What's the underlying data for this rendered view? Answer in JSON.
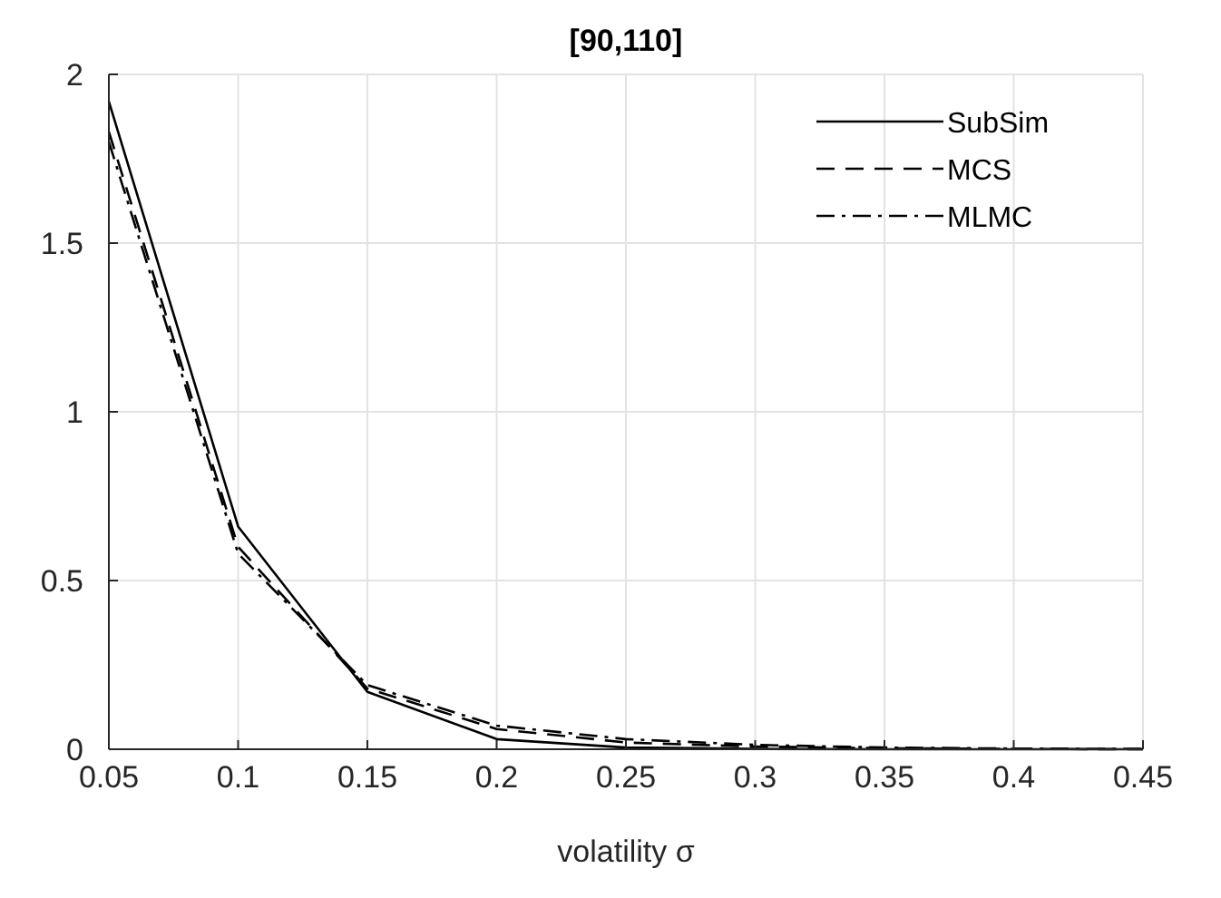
{
  "chart_data": {
    "type": "line",
    "title": "[90,110]",
    "xlabel": "volatility σ",
    "x": [
      0.05,
      0.1,
      0.15,
      0.2,
      0.25,
      0.3,
      0.35,
      0.4,
      0.45
    ],
    "series": [
      {
        "name": "SubSim",
        "color": "#000000",
        "line_style": "solid",
        "values": [
          1.92,
          0.66,
          0.17,
          0.03,
          0.005,
          0.001,
          0,
          0,
          0
        ]
      },
      {
        "name": "MCS",
        "color": "#000000",
        "line_style": "dashed",
        "values": [
          1.83,
          0.6,
          0.18,
          0.06,
          0.02,
          0.008,
          0.003,
          0.001,
          0
        ]
      },
      {
        "name": "MLMC",
        "color": "#000000",
        "line_style": "dashdot",
        "values": [
          1.8,
          0.58,
          0.19,
          0.07,
          0.03,
          0.013,
          0.005,
          0.002,
          0.001
        ]
      }
    ],
    "xlim": [
      0.05,
      0.45
    ],
    "xticks": [
      0.05,
      0.1,
      0.15,
      0.2,
      0.25,
      0.3,
      0.35,
      0.4,
      0.45
    ],
    "ylim": [
      0,
      2
    ],
    "yticks": [
      0,
      0.5,
      1,
      1.5,
      2
    ],
    "grid": true,
    "legend": "top right",
    "marker": "none"
  }
}
